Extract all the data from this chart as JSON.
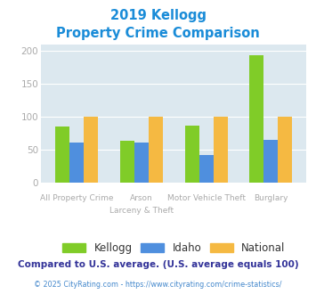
{
  "title_line1": "2019 Kellogg",
  "title_line2": "Property Crime Comparison",
  "categories": [
    "All Property Crime",
    "Arson\nLarceny & Theft",
    "Motor Vehicle Theft",
    "Burglary"
  ],
  "cat_labels_top": [
    "",
    "Arson",
    "Motor Vehicle Theft",
    ""
  ],
  "cat_labels_bot": [
    "All Property Crime",
    "Larceny & Theft",
    "",
    "Burglary"
  ],
  "series": {
    "Kellogg": [
      85,
      63,
      86,
      193
    ],
    "Idaho": [
      60,
      60,
      41,
      65
    ],
    "National": [
      100,
      100,
      100,
      100
    ]
  },
  "colors": {
    "Kellogg": "#80cc28",
    "Idaho": "#4f8fde",
    "National": "#f5b942"
  },
  "ylim": [
    0,
    210
  ],
  "yticks": [
    0,
    50,
    100,
    150,
    200
  ],
  "plot_bg": "#dce8ef",
  "title_color": "#1a8cd8",
  "axis_label_color": "#aaaaaa",
  "cat_label_color": "#aaaaaa",
  "footer_text": "Compared to U.S. average. (U.S. average equals 100)",
  "copyright_text": "© 2025 CityRating.com - https://www.cityrating.com/crime-statistics/",
  "footer_color": "#333399",
  "copyright_color": "#4488cc",
  "bar_width": 0.22
}
